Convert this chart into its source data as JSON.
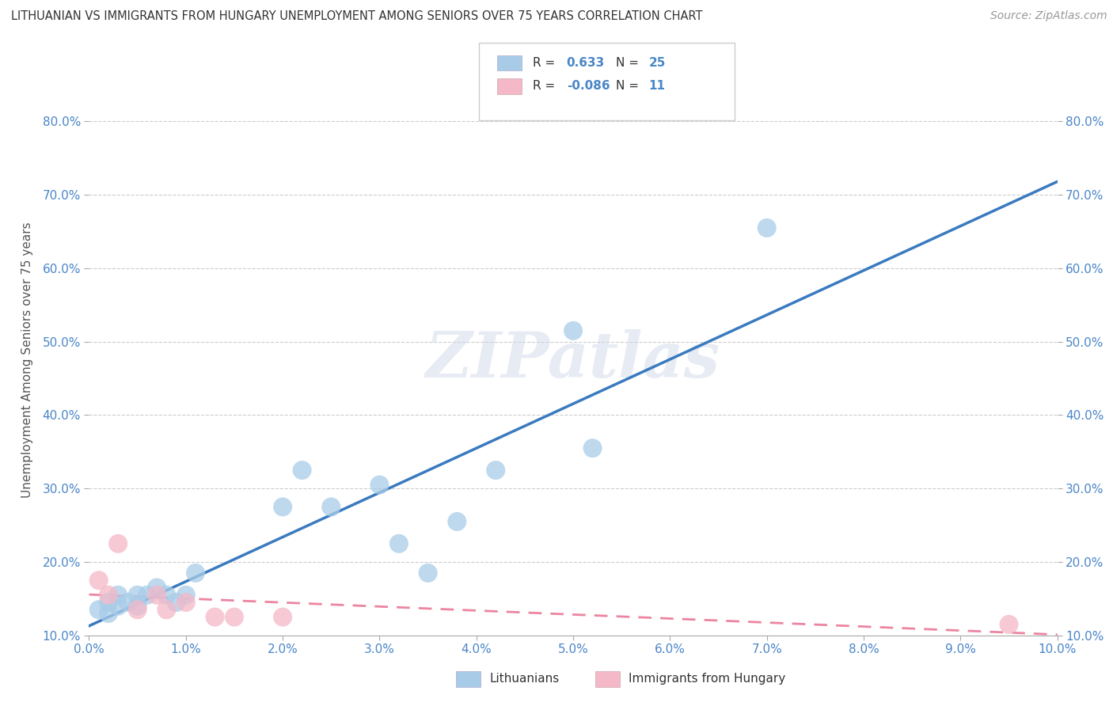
{
  "title": "LITHUANIAN VS IMMIGRANTS FROM HUNGARY UNEMPLOYMENT AMONG SENIORS OVER 75 YEARS CORRELATION CHART",
  "source": "Source: ZipAtlas.com",
  "ylabel": "Unemployment Among Seniors over 75 years",
  "xlim": [
    0.0,
    0.1
  ],
  "ylim": [
    0.1,
    0.85
  ],
  "watermark": "ZIPatlas",
  "blue_color": "#a8cce8",
  "pink_color": "#f4b8c8",
  "blue_line_color": "#3a7abf",
  "pink_line_color": "#e87090",
  "lithuanians_x": [
    0.001,
    0.002,
    0.002,
    0.003,
    0.003,
    0.004,
    0.005,
    0.005,
    0.006,
    0.007,
    0.008,
    0.009,
    0.01,
    0.011,
    0.02,
    0.022,
    0.025,
    0.03,
    0.032,
    0.035,
    0.038,
    0.042,
    0.05,
    0.052,
    0.07
  ],
  "lithuanians_y": [
    0.135,
    0.13,
    0.145,
    0.14,
    0.155,
    0.145,
    0.14,
    0.155,
    0.155,
    0.165,
    0.155,
    0.145,
    0.155,
    0.185,
    0.275,
    0.325,
    0.275,
    0.305,
    0.225,
    0.185,
    0.255,
    0.325,
    0.515,
    0.355,
    0.655
  ],
  "hungary_x": [
    0.001,
    0.002,
    0.003,
    0.005,
    0.007,
    0.008,
    0.01,
    0.013,
    0.015,
    0.02,
    0.095
  ],
  "hungary_y": [
    0.175,
    0.155,
    0.225,
    0.135,
    0.155,
    0.135,
    0.145,
    0.125,
    0.125,
    0.125,
    0.115
  ],
  "ytick_labels": [
    "10.0%",
    "20.0%",
    "30.0%",
    "40.0%",
    "50.0%",
    "60.0%",
    "70.0%",
    "80.0%"
  ],
  "ytick_values": [
    0.1,
    0.2,
    0.3,
    0.4,
    0.5,
    0.6,
    0.7,
    0.8
  ],
  "xtick_labels": [
    "0.0%",
    "1.0%",
    "2.0%",
    "3.0%",
    "4.0%",
    "5.0%",
    "6.0%",
    "7.0%",
    "8.0%",
    "9.0%",
    "10.0%"
  ],
  "xtick_values": [
    0.0,
    0.01,
    0.02,
    0.03,
    0.04,
    0.05,
    0.06,
    0.07,
    0.08,
    0.09,
    0.1
  ]
}
